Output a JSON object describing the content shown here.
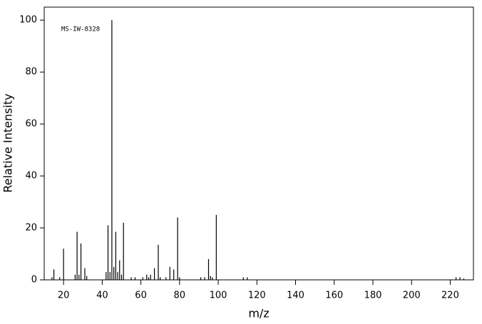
{
  "chart_data": {
    "type": "bar",
    "annotation": "MS-IW-8328",
    "x_label": "m/z",
    "y_label": "Relative Intensity",
    "x": [
      14,
      15,
      18,
      20,
      26,
      27,
      28,
      29,
      31,
      32,
      42,
      43,
      44,
      45,
      46,
      47,
      48,
      49,
      50,
      51,
      55,
      57,
      61,
      63,
      64,
      65,
      67,
      69,
      70,
      73,
      75,
      77,
      79,
      80,
      91,
      93,
      95,
      96,
      97,
      99,
      113,
      115,
      223,
      225,
      227
    ],
    "values": [
      1,
      4,
      1,
      12,
      2,
      18.5,
      2,
      14,
      4.5,
      1.5,
      3,
      21,
      3,
      100,
      5,
      18.5,
      3,
      7.5,
      2,
      22,
      1,
      1,
      1,
      2,
      1,
      2,
      4.5,
      13.5,
      1,
      1,
      5,
      4,
      24,
      1,
      1,
      1,
      8,
      1.5,
      1,
      25,
      1,
      1,
      1,
      1,
      0.5
    ],
    "color": "#000000",
    "xlim": [
      10,
      232
    ],
    "xticks": [
      20,
      40,
      60,
      80,
      100,
      120,
      140,
      160,
      180,
      200,
      220
    ],
    "ylim": [
      0,
      105
    ],
    "yticks": [
      0,
      20,
      40,
      60,
      80,
      100
    ]
  }
}
